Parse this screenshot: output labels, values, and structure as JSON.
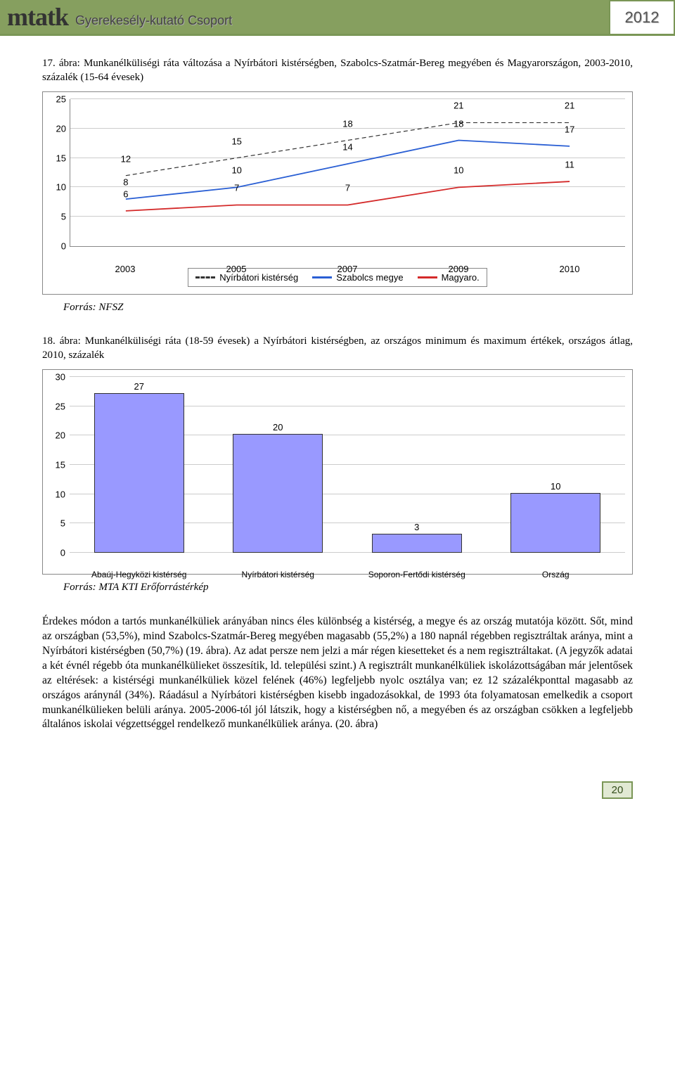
{
  "header": {
    "logo": "mtatk",
    "subtitle": "Gyerekesély-kutató Csoport",
    "year": "2012"
  },
  "caption1": "17. ábra: Munkanélküliségi ráta változása a Nyírbátori kistérségben, Szabolcs-Szatmár-Bereg megyében és Magyarországon, 2003-2010, százalék (15-64 évesek)",
  "chart1": {
    "categories": [
      "2003",
      "2005",
      "2007",
      "2009",
      "2010"
    ],
    "ymin": 0,
    "ymax": 25,
    "ystep": 5,
    "grid_color": "#cccccc",
    "series": [
      {
        "name": "Nyírbátori kistérség",
        "color": "#333333",
        "dash": "6,4",
        "width": 2,
        "values": [
          12,
          15,
          18,
          21,
          21
        ]
      },
      {
        "name": "Szabolcs megye",
        "color": "#2a5fd4",
        "dash": "",
        "width": 3,
        "values": [
          8,
          10,
          14,
          18,
          17
        ]
      },
      {
        "name": "Magyaro.",
        "color": "#d42a2a",
        "dash": "",
        "width": 3,
        "values": [
          6,
          7,
          7,
          10,
          11
        ]
      }
    ]
  },
  "source1": "Forrás: NFSZ",
  "caption2": "18. ábra: Munkanélküliségi ráta (18-59 évesek) a Nyírbátori kistérségben, az országos minimum és maximum értékek, országos átlag, 2010, százalék",
  "chart2": {
    "ymin": 0,
    "ymax": 30,
    "ystep": 5,
    "grid_color": "#cccccc",
    "bar_color": "#9999ff",
    "bar_border": "#333333",
    "bars": [
      {
        "label": "Abaúj-Hegyközi kistérség",
        "value": 27
      },
      {
        "label": "Nyírbátori kistérség",
        "value": 20
      },
      {
        "label": "Soporon-Fertődi kistérség",
        "value": 3
      },
      {
        "label": "Ország",
        "value": 10
      }
    ]
  },
  "source2": "Forrás: MTA KTI Erőforrástérkép",
  "body": "Érdekes módon a tartós munkanélküliek arányában nincs éles különbség a kistérség, a megye és az ország mutatója között. Sőt, mind az országban (53,5%), mind Szabolcs-Szatmár-Bereg megyében magasabb (55,2%) a 180 napnál régebben regisztráltak aránya, mint a Nyírbátori kistérségben (50,7%) (19. ábra). Az adat persze nem jelzi a már régen kiesetteket és a nem regisztráltakat. (A jegyzők adatai a két évnél régebb óta munkanélkülieket összesítik, ld. települési szint.) A regisztrált munkanélküliek iskolázottságában már jelentősek az eltérések: a kistérségi munkanélküliek közel felének (46%) legfeljebb nyolc osztálya van; ez 12 százalékponttal magasabb az országos aránynál (34%). Ráadásul a Nyírbátori kistérségben kisebb ingadozásokkal, de 1993 óta folyamatosan emelkedik a csoport munkanélkülieken belüli aránya. 2005-2006-tól jól látszik, hogy a kistérségben nő, a megyében és az országban csökken a legfeljebb általános iskolai végzettséggel rendelkező munkanélküliek aránya. (20. ábra)",
  "pagenum": "20"
}
